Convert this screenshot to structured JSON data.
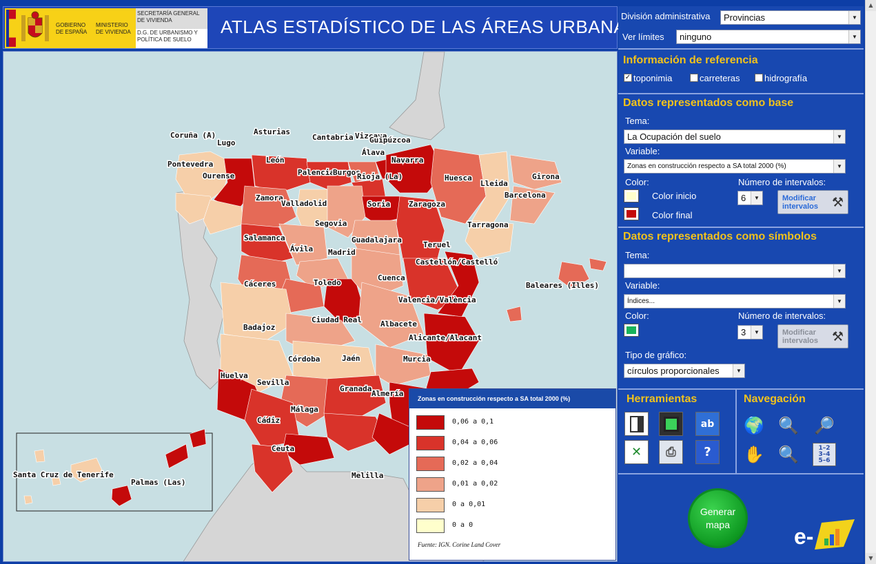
{
  "header": {
    "gov_line1": "GOBIERNO",
    "gov_line2": "DE ESPAÑA",
    "ministry_line1": "MINISTERIO",
    "ministry_line2": "DE VIVIENDA",
    "secretary": "SECRETARÍA GENERAL DE VIVIENDA",
    "directorate": "D.G. DE URBANISMO Y POLÍTICA DE SUELO",
    "title": "ATLAS ESTADÍSTICO DE LAS ÁREAS URBANAS"
  },
  "panel": {
    "division_label": "División administrativa",
    "division_value": "Provincias",
    "limits_label": "Ver límites",
    "limits_value": "ninguno",
    "reference_title": "Información de referencia",
    "reference_options": [
      {
        "label": "toponimia",
        "checked": true
      },
      {
        "label": "carreteras",
        "checked": false
      },
      {
        "label": "hidrografía",
        "checked": false
      }
    ],
    "base_title": "Datos representados como base",
    "base_theme_label": "Tema:",
    "base_theme_value": "La Ocupación del suelo",
    "base_variable_label": "Variable:",
    "base_variable_value": "Zonas en construcción respecto a SA total 2000 (%)",
    "base_color_label": "Color:",
    "base_color_start_label": "Color inicio",
    "base_color_end_label": "Color final",
    "base_color_start": "#ffffcc",
    "base_color_end": "#c40a0a",
    "base_intervals_label": "Número de intervalos:",
    "base_intervals_value": "6",
    "modify_label_1": "Modificar",
    "modify_label_2": "intervalos",
    "symbols_title": "Datos representados como símbolos",
    "sym_theme_label": "Tema:",
    "sym_theme_value": "",
    "sym_variable_label": "Variable:",
    "sym_variable_value": "Índices...",
    "sym_color_label": "Color:",
    "sym_color": "#19b35a",
    "sym_intervals_label": "Número de intervalos:",
    "sym_intervals_value": "3",
    "chart_type_label": "Tipo de gráfico:",
    "chart_type_value": "círculos proporcionales",
    "tools_title": "Herramientas",
    "nav_title": "Navegación",
    "generate_line1": "Generar",
    "generate_line2": "mapa",
    "logo_text": "e-"
  },
  "map": {
    "province_labels": [
      "Coruña (A)",
      "Lugo",
      "Asturias",
      "Cantabria",
      "Vizcaya",
      "Guipúzcoa",
      "Álava",
      "Navarra",
      "Pontevedra",
      "Ourense",
      "León",
      "Palencia",
      "Burgos",
      "Rioja (La)",
      "Huesca",
      "Lleida",
      "Girona",
      "Barcelona",
      "Zamora",
      "Valladolid",
      "Soria",
      "Zaragoza",
      "Tarragona",
      "Segovia",
      "Salamanca",
      "Ávila",
      "Madrid",
      "Guadalajara",
      "Teruel",
      "Castellón/Castelló",
      "Cáceres",
      "Toledo",
      "Cuenca",
      "Baleares (Illes)",
      "Valencia/València",
      "Badajoz",
      "Ciudad Real",
      "Albacete",
      "Alicante/Alacant",
      "Córdoba",
      "Jaén",
      "Murcia",
      "Huelva",
      "Sevilla",
      "Granada",
      "Almería",
      "Málaga",
      "Cádiz",
      "Ceuta",
      "Melilla",
      "Santa Cruz de Tenerife",
      "Palmas (Las)"
    ]
  },
  "legend": {
    "title": "Zonas en construcción respecto a SA total 2000 (%)",
    "classes": [
      {
        "label": "0,06  a  0,1",
        "color": "#c40a0a"
      },
      {
        "label": "0,04  a  0,06",
        "color": "#d9332a"
      },
      {
        "label": "0,02  a  0,04",
        "color": "#e56a57"
      },
      {
        "label": "0,01  a  0,02",
        "color": "#eea389"
      },
      {
        "label": "0  a  0,01",
        "color": "#f6cfa9"
      },
      {
        "label": "0  a  0",
        "color": "#ffffcc"
      }
    ],
    "source": "Fuente: IGN. Corine Land Cover"
  }
}
